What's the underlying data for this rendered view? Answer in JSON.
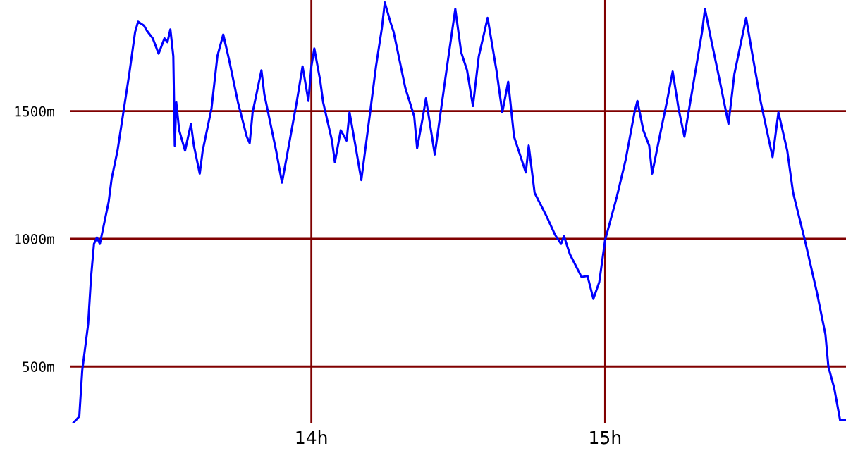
{
  "chart_data": {
    "type": "line",
    "x": [
      13.19,
      13.21,
      13.22,
      13.24,
      13.25,
      13.26,
      13.27,
      13.28,
      13.29,
      13.31,
      13.32,
      13.34,
      13.36,
      13.38,
      13.4,
      13.41,
      13.43,
      13.44,
      13.46,
      13.48,
      13.5,
      13.51,
      13.52,
      13.53,
      13.535,
      13.54,
      13.55,
      13.57,
      13.59,
      13.6,
      13.62,
      13.63,
      13.66,
      13.68,
      13.7,
      13.72,
      13.74,
      13.75,
      13.78,
      13.79,
      13.8,
      13.83,
      13.84,
      13.87,
      13.88,
      13.9,
      13.92,
      13.95,
      13.97,
      13.99,
      14.0,
      14.01,
      14.03,
      14.04,
      14.07,
      14.08,
      14.1,
      14.12,
      14.13,
      14.15,
      14.17,
      14.2,
      14.22,
      14.24,
      14.25,
      14.27,
      14.28,
      14.3,
      14.32,
      14.35,
      14.36,
      14.38,
      14.39,
      14.42,
      14.44,
      14.46,
      14.49,
      14.51,
      14.53,
      14.55,
      14.57,
      14.6,
      14.63,
      14.65,
      14.67,
      14.69,
      14.73,
      14.74,
      14.76,
      14.8,
      14.83,
      14.85,
      14.86,
      14.88,
      14.92,
      14.94,
      14.96,
      14.98,
      15.0,
      15.04,
      15.07,
      15.1,
      15.11,
      15.13,
      15.15,
      15.16,
      15.19,
      15.21,
      15.23,
      15.25,
      15.27,
      15.3,
      15.33,
      15.34,
      15.36,
      15.39,
      15.42,
      15.44,
      15.48,
      15.5,
      15.53,
      15.57,
      15.59,
      15.62,
      15.64,
      15.68,
      15.72,
      15.75,
      15.76,
      15.78,
      15.8,
      15.82
    ],
    "series": [
      {
        "color": "#0000ff",
        "values": [
          280,
          305,
          485,
          665,
          850,
          980,
          1005,
          980,
          1035,
          1145,
          1235,
          1345,
          1495,
          1645,
          1810,
          1850,
          1835,
          1815,
          1785,
          1725,
          1785,
          1770,
          1820,
          1715,
          1365,
          1535,
          1425,
          1345,
          1450,
          1365,
          1255,
          1345,
          1510,
          1715,
          1800,
          1700,
          1590,
          1535,
          1400,
          1375,
          1495,
          1660,
          1565,
          1400,
          1345,
          1220,
          1345,
          1535,
          1675,
          1540,
          1675,
          1745,
          1620,
          1535,
          1385,
          1300,
          1425,
          1385,
          1495,
          1365,
          1230,
          1495,
          1675,
          1825,
          1925,
          1845,
          1810,
          1700,
          1590,
          1480,
          1355,
          1480,
          1550,
          1330,
          1495,
          1660,
          1900,
          1730,
          1660,
          1520,
          1715,
          1865,
          1660,
          1495,
          1615,
          1400,
          1260,
          1365,
          1180,
          1090,
          1015,
          980,
          1010,
          940,
          850,
          855,
          765,
          830,
          995,
          1165,
          1310,
          1495,
          1540,
          1425,
          1365,
          1255,
          1425,
          1535,
          1655,
          1510,
          1400,
          1605,
          1810,
          1900,
          1785,
          1620,
          1450,
          1645,
          1865,
          1730,
          1535,
          1320,
          1495,
          1345,
          1180,
          995,
          795,
          625,
          500,
          415,
          290,
          290
        ]
      }
    ],
    "xlim": [
      13.18,
      15.82
    ],
    "ylim": [
      280,
      1935
    ],
    "xticks": [
      {
        "value": 14,
        "label": "14h"
      },
      {
        "value": 15,
        "label": "15h"
      }
    ],
    "yticks": [
      {
        "value": 500,
        "label": "500m"
      },
      {
        "value": 1000,
        "label": "1000m"
      },
      {
        "value": 1500,
        "label": "1500m"
      }
    ],
    "grid": true,
    "marker": "none",
    "line_style": "solid"
  }
}
